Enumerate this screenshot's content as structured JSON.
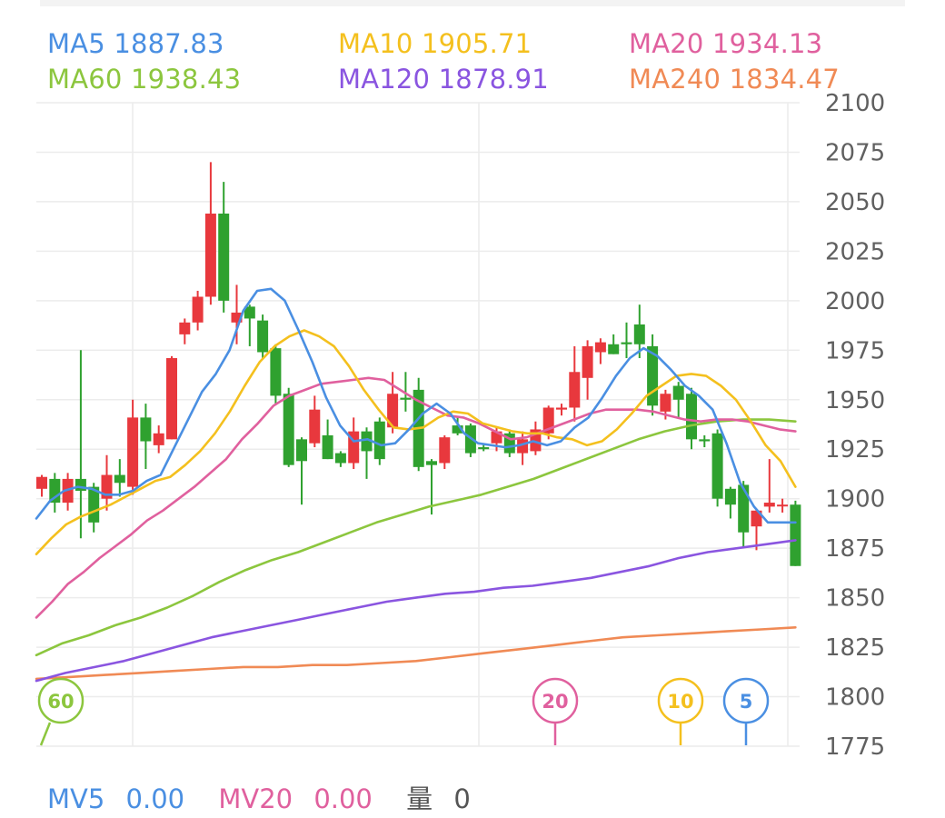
{
  "legend": {
    "ma5": {
      "name": "MA5",
      "value": "1887.83",
      "color": "#4a8fe2"
    },
    "ma10": {
      "name": "MA10",
      "value": "1905.71",
      "color": "#f4c01e"
    },
    "ma20": {
      "name": "MA20",
      "value": "1934.13",
      "color": "#e0609e"
    },
    "ma60": {
      "name": "MA60",
      "value": "1938.43",
      "color": "#8cc63e"
    },
    "ma120": {
      "name": "MA120",
      "value": "1878.91",
      "color": "#8a55e0"
    },
    "ma240": {
      "name": "MA240",
      "value": "1834.47",
      "color": "#f08a55"
    }
  },
  "volume": {
    "mv5": {
      "name": "MV5",
      "value": "0.00",
      "color": "#4a8fe2"
    },
    "mv20": {
      "name": "MV20",
      "value": "0.00",
      "color": "#e0609e"
    },
    "vol": {
      "name": "量",
      "value": "0"
    }
  },
  "badges": [
    {
      "label": "60",
      "color": "#8cc63e"
    },
    {
      "label": "20",
      "color": "#e0609e"
    },
    {
      "label": "10",
      "color": "#f4c01e"
    },
    {
      "label": "5",
      "color": "#4a8fe2"
    }
  ],
  "colors": {
    "up": "#e8383d",
    "down": "#2fa12f",
    "grid": "#ececec",
    "axis_text": "#606060"
  },
  "chart_data": {
    "type": "candlestick",
    "y_ticks": [
      "2100",
      "2075",
      "2050",
      "2025",
      "2000",
      "1975",
      "1950",
      "1925",
      "1900",
      "1875",
      "1850",
      "1825",
      "1800",
      "1775"
    ],
    "ylim": [
      1775,
      2100
    ],
    "candles": [
      [
        1905,
        1911,
        1901,
        1912
      ],
      [
        1910,
        1898,
        1893,
        1913
      ],
      [
        1898,
        1910,
        1894,
        1913
      ],
      [
        1910,
        1904,
        1880,
        1975
      ],
      [
        1906,
        1888,
        1883,
        1908
      ],
      [
        1900,
        1912,
        1894,
        1922
      ],
      [
        1912,
        1908,
        1901,
        1920
      ],
      [
        1906,
        1941,
        1902,
        1950
      ],
      [
        1941,
        1929,
        1915,
        1948
      ],
      [
        1927,
        1933,
        1923,
        1937
      ],
      [
        1930,
        1971,
        1930,
        1972
      ],
      [
        1983,
        1989,
        1978,
        1991
      ],
      [
        1989,
        2002,
        1985,
        2005
      ],
      [
        2002,
        2044,
        1998,
        2070
      ],
      [
        2044,
        2000,
        1994,
        2060
      ],
      [
        1989,
        1994,
        1978,
        2008
      ],
      [
        1997,
        1991,
        1977,
        1998
      ],
      [
        1990,
        1974,
        1971,
        1993
      ],
      [
        1976,
        1952,
        1948,
        1978
      ],
      [
        1953,
        1917,
        1916,
        1956
      ],
      [
        1930,
        1919,
        1897,
        1931
      ],
      [
        1928,
        1945,
        1926,
        1952
      ],
      [
        1932,
        1920,
        1920,
        1940
      ],
      [
        1923,
        1918,
        1916,
        1924
      ],
      [
        1918,
        1934,
        1915,
        1941
      ],
      [
        1934,
        1924,
        1910,
        1936
      ],
      [
        1939,
        1920,
        1917,
        1941
      ],
      [
        1936,
        1953,
        1933,
        1964
      ],
      [
        1951,
        1950,
        1944,
        1964
      ],
      [
        1955,
        1916,
        1914,
        1961
      ],
      [
        1919,
        1917,
        1892,
        1920
      ],
      [
        1918,
        1931,
        1915,
        1932
      ],
      [
        1937,
        1933,
        1932,
        1941
      ],
      [
        1937,
        1923,
        1921,
        1938
      ],
      [
        1926,
        1925,
        1924,
        1928
      ],
      [
        1928,
        1934,
        1924,
        1936
      ],
      [
        1933,
        1923,
        1921,
        1935
      ],
      [
        1923,
        1930,
        1917,
        1934
      ],
      [
        1924,
        1935,
        1922,
        1939
      ],
      [
        1933,
        1946,
        1930,
        1947
      ],
      [
        1945,
        1946,
        1942,
        1948
      ],
      [
        1946,
        1964,
        1939,
        1977
      ],
      [
        1961,
        1977,
        1950,
        1980
      ],
      [
        1974,
        1979,
        1968,
        1981
      ],
      [
        1978,
        1973,
        1973,
        1983
      ],
      [
        1979,
        1978,
        1971,
        1989
      ],
      [
        1988,
        1978,
        1971,
        1998
      ],
      [
        1977,
        1947,
        1942,
        1983
      ],
      [
        1944,
        1953,
        1940,
        1955
      ],
      [
        1957,
        1950,
        1941,
        1959
      ],
      [
        1953,
        1930,
        1925,
        1956
      ],
      [
        1930,
        1929,
        1926,
        1932
      ],
      [
        1933,
        1900,
        1896,
        1935
      ],
      [
        1905,
        1897,
        1890,
        1906
      ],
      [
        1907,
        1883,
        1875,
        1909
      ],
      [
        1886,
        1894,
        1874,
        1895
      ],
      [
        1896,
        1898,
        1893,
        1920
      ],
      [
        1897,
        1897,
        1893,
        1900
      ],
      [
        1897,
        1866,
        1866,
        1899
      ]
    ],
    "ma_lines": {
      "ma5": [
        1890,
        1899,
        1904,
        1906,
        1905,
        1902,
        1902,
        1904,
        1909,
        1912,
        1926,
        1940,
        1954,
        1963,
        1975,
        1995,
        2005,
        2006,
        2000,
        1985,
        1969,
        1951,
        1937,
        1929,
        1930,
        1927,
        1928,
        1935,
        1943,
        1948,
        1943,
        1933,
        1928,
        1927,
        1926,
        1927,
        1929,
        1927,
        1929,
        1936,
        1941,
        1951,
        1962,
        1971,
        1976,
        1972,
        1965,
        1957,
        1952,
        1945,
        1928,
        1908,
        1896,
        1888,
        1888,
        1888
      ],
      "ma10": [
        1872,
        1880,
        1887,
        1891,
        1894,
        1897,
        1901,
        1905,
        1909,
        1911,
        1917,
        1924,
        1933,
        1944,
        1957,
        1969,
        1977,
        1982,
        1985,
        1982,
        1977,
        1967,
        1955,
        1945,
        1936,
        1935,
        1936,
        1941,
        1944,
        1943,
        1938,
        1936,
        1934,
        1933,
        1933,
        1931,
        1930,
        1927,
        1929,
        1935,
        1943,
        1952,
        1957,
        1962,
        1963,
        1962,
        1957,
        1950,
        1939,
        1927,
        1919,
        1906
      ],
      "ma20": [
        1840,
        1848,
        1857,
        1863,
        1870,
        1876,
        1882,
        1889,
        1894,
        1900,
        1906,
        1913,
        1920,
        1930,
        1938,
        1947,
        1952,
        1955,
        1958,
        1959,
        1960,
        1961,
        1960,
        1955,
        1950,
        1946,
        1942,
        1941,
        1938,
        1934,
        1930,
        1931,
        1934,
        1937,
        1940,
        1943,
        1945,
        1945,
        1945,
        1944,
        1942,
        1940,
        1939,
        1940,
        1940,
        1939,
        1937,
        1935,
        1934
      ],
      "ma60": [
        1821,
        1827,
        1831,
        1836,
        1840,
        1845,
        1851,
        1858,
        1864,
        1869,
        1873,
        1878,
        1883,
        1888,
        1892,
        1896,
        1899,
        1902,
        1906,
        1910,
        1915,
        1920,
        1925,
        1930,
        1934,
        1937,
        1939,
        1940,
        1940,
        1939
      ],
      "ma120": [
        1808,
        1812,
        1815,
        1818,
        1822,
        1826,
        1830,
        1833,
        1836,
        1839,
        1842,
        1845,
        1848,
        1850,
        1852,
        1853,
        1855,
        1856,
        1858,
        1860,
        1863,
        1866,
        1870,
        1873,
        1875,
        1877,
        1879
      ],
      "ma240": [
        1809,
        1810,
        1811,
        1812,
        1813,
        1814,
        1815,
        1815,
        1816,
        1816,
        1817,
        1818,
        1820,
        1822,
        1824,
        1826,
        1828,
        1830,
        1831,
        1832,
        1833,
        1834,
        1835
      ]
    }
  }
}
